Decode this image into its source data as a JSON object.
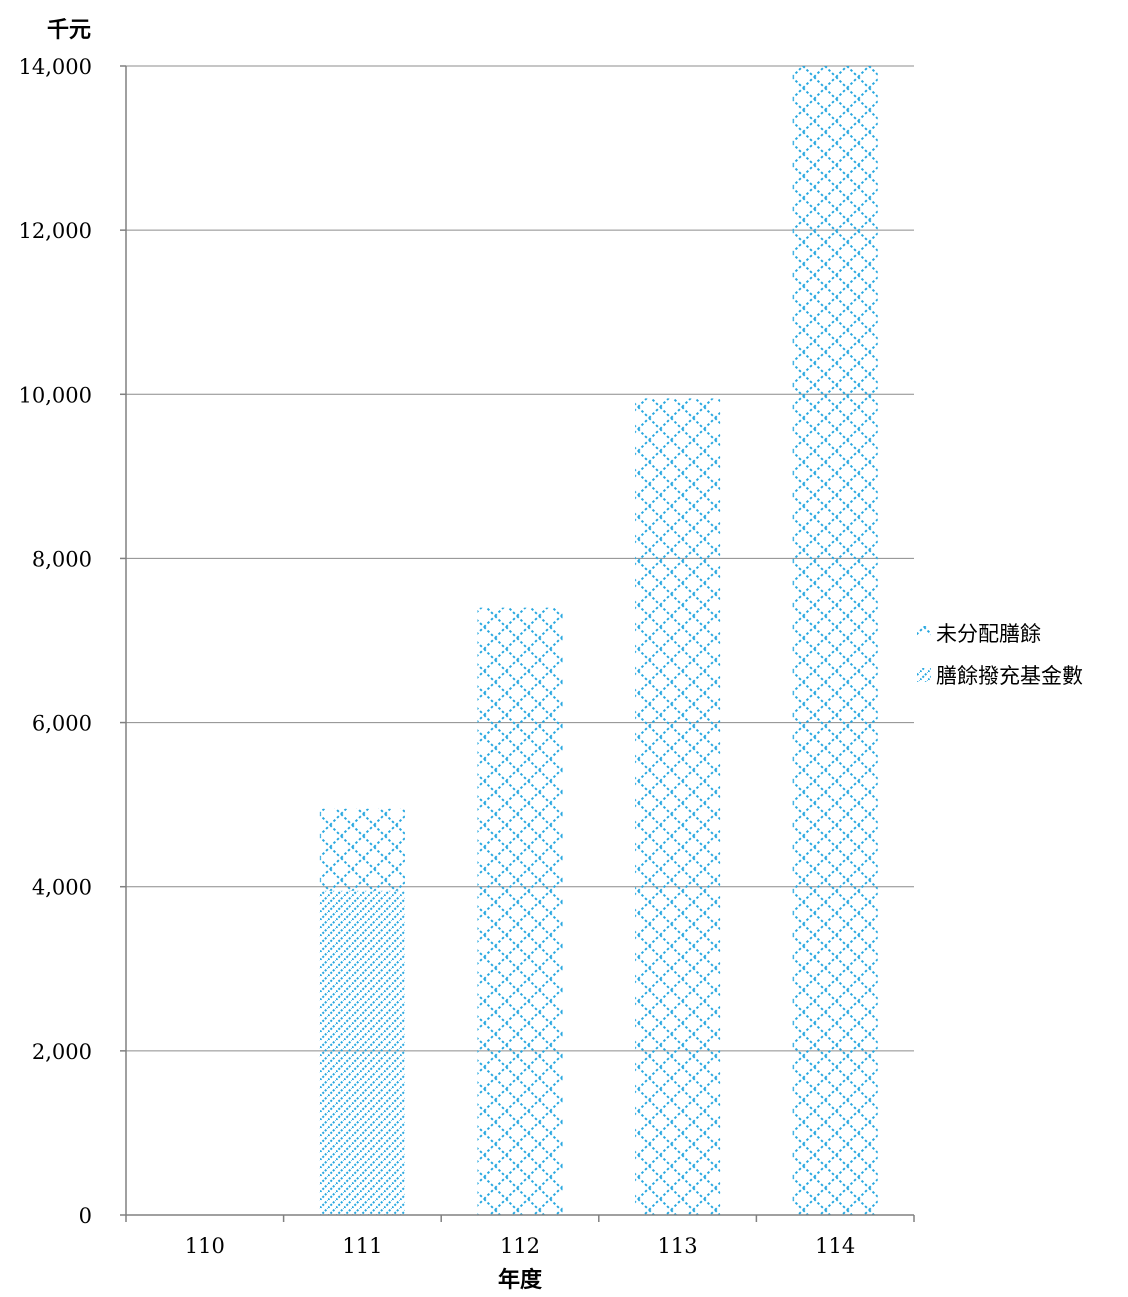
{
  "chart_data": {
    "type": "bar",
    "stacked": true,
    "categories": [
      "110",
      "111",
      "112",
      "113",
      "114"
    ],
    "series": [
      {
        "name": "膳餘撥充基金數",
        "values": [
          0,
          3950,
          0,
          0,
          0
        ],
        "color": "#29a8e0",
        "pattern": "diagonal-stripes"
      },
      {
        "name": "未分配膳餘",
        "values": [
          0,
          1000,
          7400,
          9950,
          14000
        ],
        "color": "#29a8e0",
        "pattern": "zigzag-weave"
      }
    ],
    "title": "",
    "xlabel": "年度",
    "ylabel": "千元",
    "ylim": [
      0,
      14000
    ],
    "yticks": [
      0,
      2000,
      4000,
      6000,
      8000,
      10000,
      12000,
      14000
    ],
    "ytick_labels": [
      "0",
      "2,000",
      "4,000",
      "6,000",
      "8,000",
      "10,000",
      "12,000",
      "14,000"
    ],
    "grid": true,
    "legend_position": "right"
  }
}
